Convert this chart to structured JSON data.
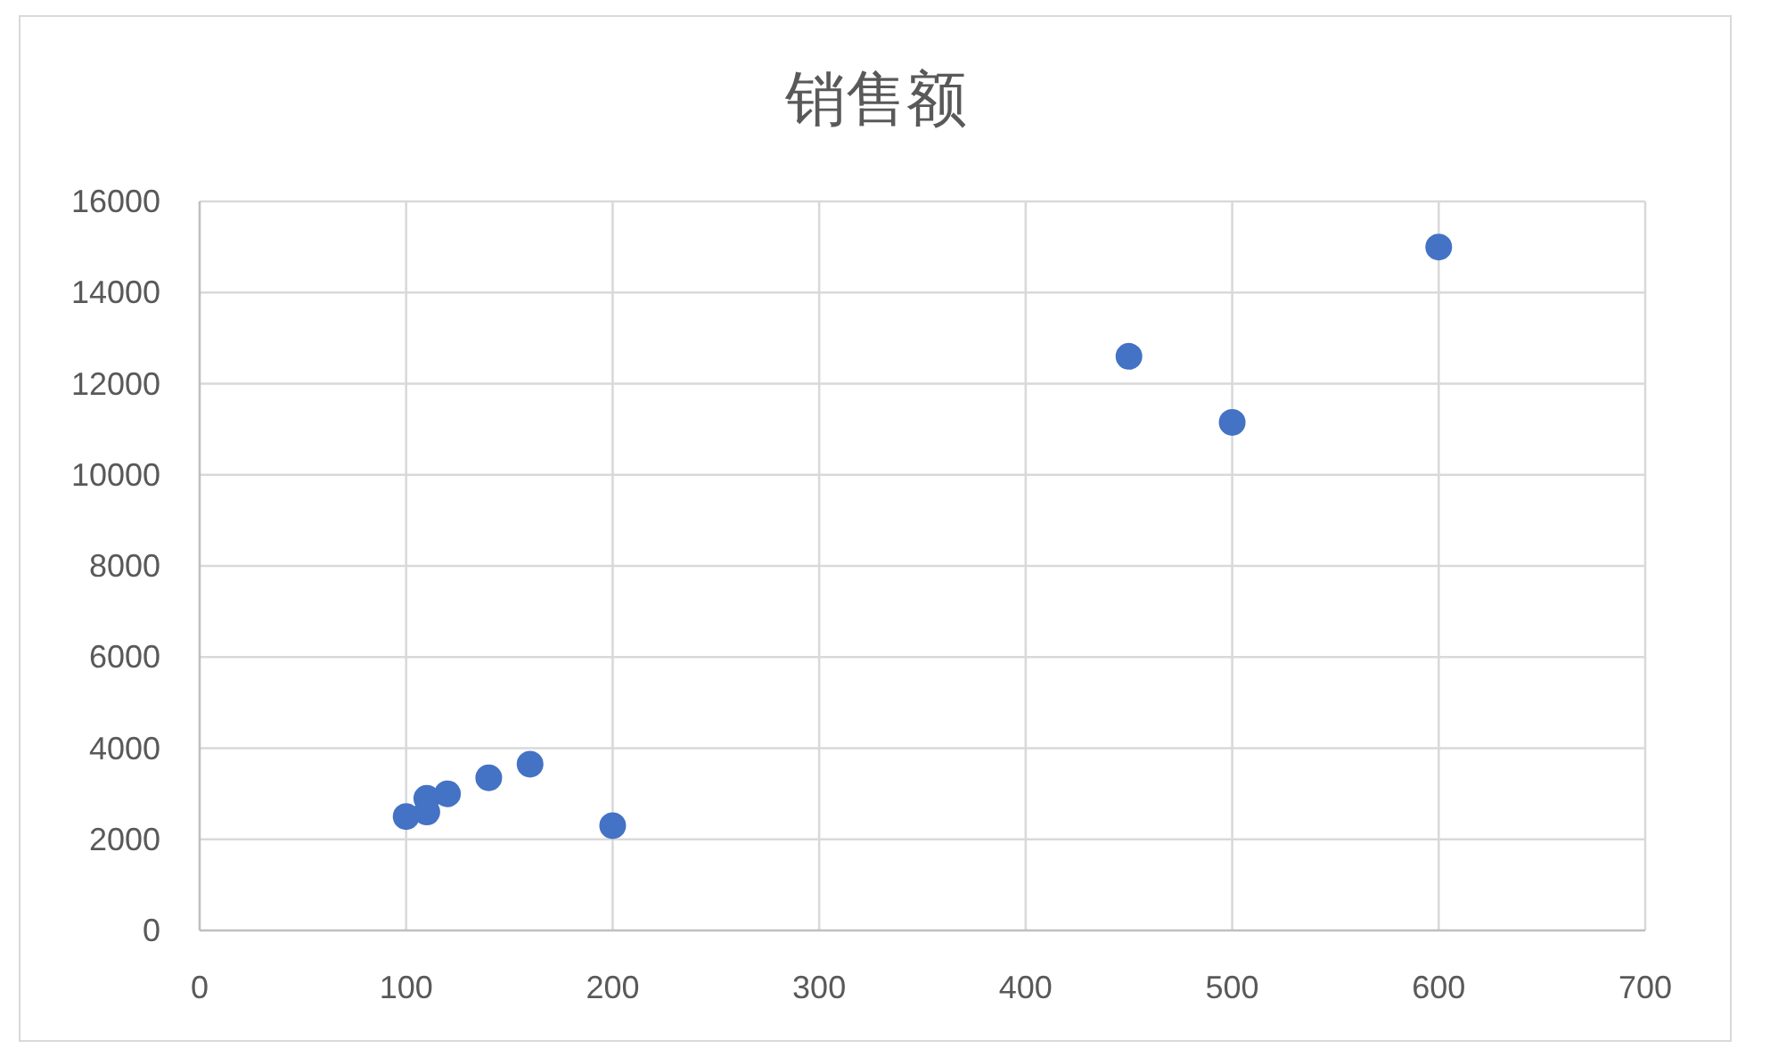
{
  "chart_data": {
    "type": "scatter",
    "title": "销售额",
    "x": [
      100,
      110,
      110,
      120,
      140,
      160,
      200,
      450,
      500,
      600
    ],
    "values": [
      2500,
      2900,
      2600,
      3000,
      3350,
      3650,
      2300,
      12600,
      11150,
      15000
    ],
    "color": "#4472c4",
    "marker": "circle",
    "grid": true,
    "xlim": [
      0,
      700
    ],
    "xticks": [
      0,
      100,
      200,
      300,
      400,
      500,
      600,
      700
    ],
    "ylim": [
      0,
      16000
    ],
    "yticks": [
      0,
      2000,
      4000,
      6000,
      8000,
      10000,
      12000,
      14000,
      16000
    ]
  }
}
